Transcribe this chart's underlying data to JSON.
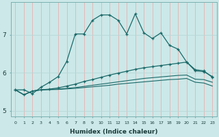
{
  "xlabel": "Humidex (Indice chaleur)",
  "bg_color": "#cce8e8",
  "grid_color_v": "#e8b0b0",
  "grid_color_h": "#b8d8d8",
  "line_color": "#1a6868",
  "xlim": [
    -0.5,
    23.5
  ],
  "ylim": [
    4.85,
    7.85
  ],
  "yticks": [
    5,
    6,
    7
  ],
  "xticks": [
    0,
    1,
    2,
    3,
    4,
    5,
    6,
    7,
    8,
    9,
    10,
    11,
    12,
    13,
    14,
    15,
    16,
    17,
    18,
    19,
    20,
    21,
    22,
    23
  ],
  "series1_x": [
    0,
    1,
    2,
    3,
    4,
    5,
    6,
    7,
    8,
    9,
    10,
    11,
    12,
    13,
    14,
    15,
    16,
    17,
    18,
    19,
    20,
    21,
    22,
    23
  ],
  "series1_y": [
    5.55,
    5.55,
    5.45,
    5.62,
    5.75,
    5.9,
    6.3,
    7.02,
    7.02,
    7.38,
    7.52,
    7.52,
    7.38,
    7.02,
    7.55,
    7.05,
    6.9,
    7.05,
    6.72,
    6.62,
    6.28,
    6.08,
    6.05,
    5.88
  ],
  "series2_x": [
    0,
    1,
    2,
    3,
    4,
    5,
    6,
    7,
    8,
    9,
    10,
    11,
    12,
    13,
    14,
    15,
    16,
    17,
    18,
    19,
    20,
    21,
    22,
    23
  ],
  "series2_y": [
    5.55,
    5.42,
    5.52,
    5.55,
    5.57,
    5.6,
    5.65,
    5.7,
    5.77,
    5.82,
    5.88,
    5.94,
    5.99,
    6.04,
    6.09,
    6.13,
    6.16,
    6.19,
    6.22,
    6.25,
    6.28,
    6.05,
    6.03,
    5.9
  ],
  "series3_x": [
    0,
    1,
    2,
    3,
    4,
    5,
    6,
    7,
    8,
    9,
    10,
    11,
    12,
    13,
    14,
    15,
    16,
    17,
    18,
    19,
    20,
    21,
    22,
    23
  ],
  "series3_y": [
    5.55,
    5.42,
    5.52,
    5.55,
    5.56,
    5.57,
    5.59,
    5.61,
    5.64,
    5.67,
    5.7,
    5.73,
    5.76,
    5.79,
    5.82,
    5.85,
    5.87,
    5.89,
    5.91,
    5.93,
    5.94,
    5.83,
    5.82,
    5.75
  ],
  "series4_x": [
    0,
    1,
    2,
    3,
    4,
    5,
    6,
    7,
    8,
    9,
    10,
    11,
    12,
    13,
    14,
    15,
    16,
    17,
    18,
    19,
    20,
    21,
    22,
    23
  ],
  "series4_y": [
    5.55,
    5.42,
    5.52,
    5.55,
    5.555,
    5.56,
    5.575,
    5.59,
    5.61,
    5.63,
    5.65,
    5.67,
    5.7,
    5.72,
    5.74,
    5.76,
    5.78,
    5.8,
    5.82,
    5.83,
    5.85,
    5.75,
    5.73,
    5.65
  ]
}
